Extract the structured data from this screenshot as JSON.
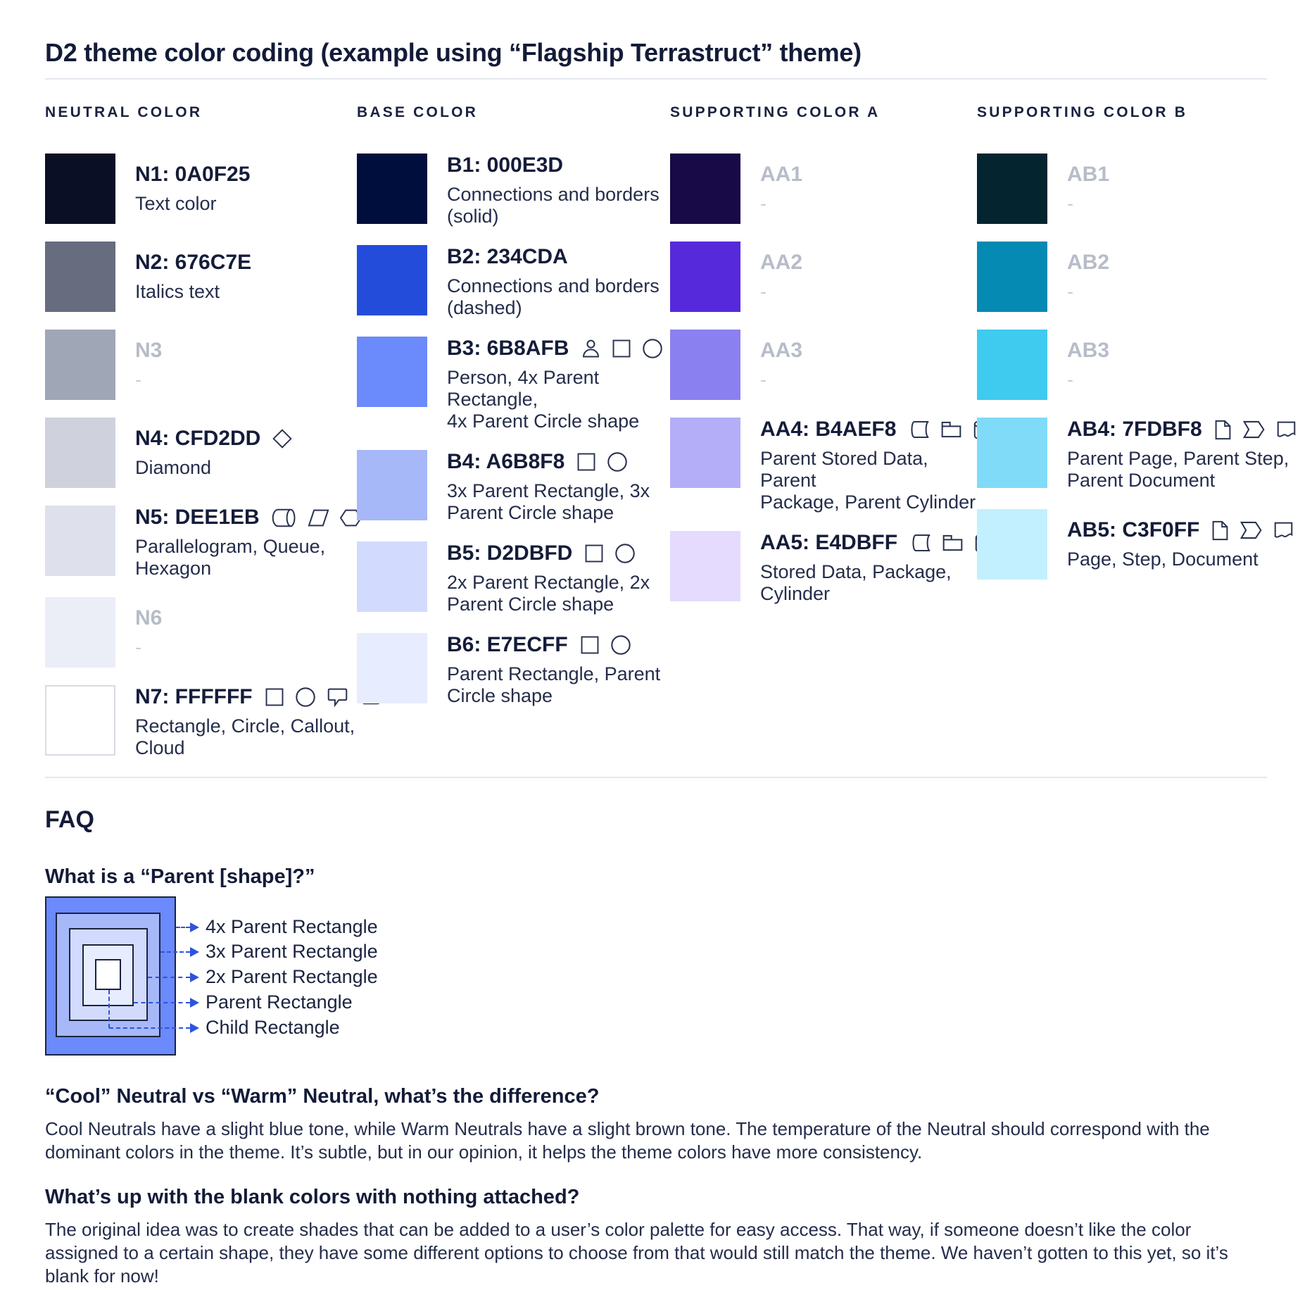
{
  "page": {
    "title": "D2 theme color coding (example using “Flagship Terrastruct” theme)"
  },
  "columns": [
    {
      "header": "NEUTRAL COLOR",
      "items": [
        {
          "label": "N1: 0A0F25",
          "swatch": "#0A0F25",
          "desc": "Text color",
          "icons": [],
          "muted": false
        },
        {
          "label": "N2: 676C7E",
          "swatch": "#676C7E",
          "desc": "Italics text",
          "icons": [],
          "muted": false
        },
        {
          "label": "N3",
          "swatch": "#9FA6B6",
          "desc": "-",
          "icons": [],
          "muted": true
        },
        {
          "label": "N4: CFD2DD",
          "swatch": "#CFD2DD",
          "desc": "Diamond",
          "icons": [
            "diamond"
          ],
          "muted": false
        },
        {
          "label": "N5: DEE1EB",
          "swatch": "#DEE1EB",
          "desc": "Parallelogram, Queue,\nHexagon",
          "icons": [
            "queue",
            "parallelogram",
            "hexagon"
          ],
          "muted": false
        },
        {
          "label": "N6",
          "swatch": "#EBEEF7",
          "desc": "-",
          "icons": [],
          "muted": true
        },
        {
          "label": "N7: FFFFFF",
          "swatch": "#FFFFFF",
          "desc": "Rectangle, Circle, Callout,\nCloud",
          "icons": [
            "rectangle",
            "circle",
            "callout",
            "cloud"
          ],
          "muted": false,
          "bordered": true
        }
      ]
    },
    {
      "header": "BASE COLOR",
      "items": [
        {
          "label": "B1: 000E3D",
          "swatch": "#000E3D",
          "desc": "Connections and borders\n(solid)",
          "icons": [],
          "muted": false
        },
        {
          "label": "B2: 234CDA",
          "swatch": "#234CDA",
          "desc": "Connections and borders\n(dashed)",
          "icons": [],
          "muted": false
        },
        {
          "label": "B3: 6B8AFB",
          "swatch": "#6B8AFB",
          "desc": "Person, 4x Parent Rectangle,\n4x Parent Circle shape",
          "icons": [
            "person",
            "rectangle",
            "circle"
          ],
          "muted": false
        },
        {
          "label": "B4: A6B8F8",
          "swatch": "#A6B8F8",
          "desc": "3x Parent Rectangle, 3x\nParent Circle shape",
          "icons": [
            "rectangle",
            "circle"
          ],
          "muted": false
        },
        {
          "label": "B5: D2DBFD",
          "swatch": "#D2DBFD",
          "desc": "2x Parent Rectangle, 2x\nParent Circle shape",
          "icons": [
            "rectangle",
            "circle"
          ],
          "muted": false
        },
        {
          "label": "B6: E7ECFF",
          "swatch": "#E7ECFF",
          "desc": "Parent Rectangle, Parent\nCircle shape",
          "icons": [
            "rectangle",
            "circle"
          ],
          "muted": false
        }
      ]
    },
    {
      "header": "SUPPORTING COLOR A",
      "items": [
        {
          "label": "AA1",
          "swatch": "#180A46",
          "desc": "-",
          "icons": [],
          "muted": true
        },
        {
          "label": "AA2",
          "swatch": "#5629DB",
          "desc": "-",
          "icons": [],
          "muted": true
        },
        {
          "label": "AA3",
          "swatch": "#8B80F0",
          "desc": "-",
          "icons": [],
          "muted": true
        },
        {
          "label": "AA4: B4AEF8",
          "swatch": "#B4AEF8",
          "desc": "Parent Stored Data, Parent\nPackage, Parent Cylinder",
          "icons": [
            "stored-data",
            "package",
            "cylinder"
          ],
          "muted": false
        },
        {
          "label": "AA5: E4DBFF",
          "swatch": "#E4DBFF",
          "desc": "Stored Data, Package,\nCylinder",
          "icons": [
            "stored-data",
            "package",
            "cylinder"
          ],
          "muted": false
        }
      ]
    },
    {
      "header": "SUPPORTING COLOR B",
      "items": [
        {
          "label": "AB1",
          "swatch": "#042430",
          "desc": "-",
          "icons": [],
          "muted": true
        },
        {
          "label": "AB2",
          "swatch": "#048AB3",
          "desc": "-",
          "icons": [],
          "muted": true
        },
        {
          "label": "AB3",
          "swatch": "#3ECBEF",
          "desc": "-",
          "icons": [],
          "muted": true
        },
        {
          "label": "AB4: 7FDBF8",
          "swatch": "#7FDBF8",
          "desc": "Parent Page, Parent Step,\nParent Document",
          "icons": [
            "page",
            "step",
            "document"
          ],
          "muted": false
        },
        {
          "label": "AB5: C3F0FF",
          "swatch": "#C3F0FF",
          "desc": "Page, Step, Document",
          "icons": [
            "page",
            "step",
            "document"
          ],
          "muted": false
        }
      ]
    }
  ],
  "faq": {
    "title": "FAQ",
    "q1": "What is a “Parent [shape]?”",
    "diagram": {
      "labels": [
        "4x Parent Rectangle",
        "3x Parent Rectangle",
        "2x Parent Rectangle",
        "Parent Rectangle",
        "Child Rectangle"
      ],
      "fills": [
        "#6B8AFB",
        "#A6B8F8",
        "#D2DBFD",
        "#E7ECFF",
        "#FFFFFF"
      ],
      "arrow_color": "#2F52DE"
    },
    "q2": "“Cool” Neutral vs “Warm” Neutral, what’s the difference?",
    "a2": "Cool Neutrals have a slight blue tone, while Warm Neutrals have a slight brown tone. The temperature of the Neutral should correspond with the dominant colors in the theme. It’s subtle, but in our opinion, it helps the theme colors have more consistency.",
    "q3": "What’s up with the blank colors with nothing attached?",
    "a3": "The original idea was to create shades that can be added to a user’s color palette for easy access. That way, if someone doesn’t like the color assigned to a certain shape, they have some different options to choose from that would still match the theme. We haven’t gotten to this yet, so it’s blank for now!"
  }
}
